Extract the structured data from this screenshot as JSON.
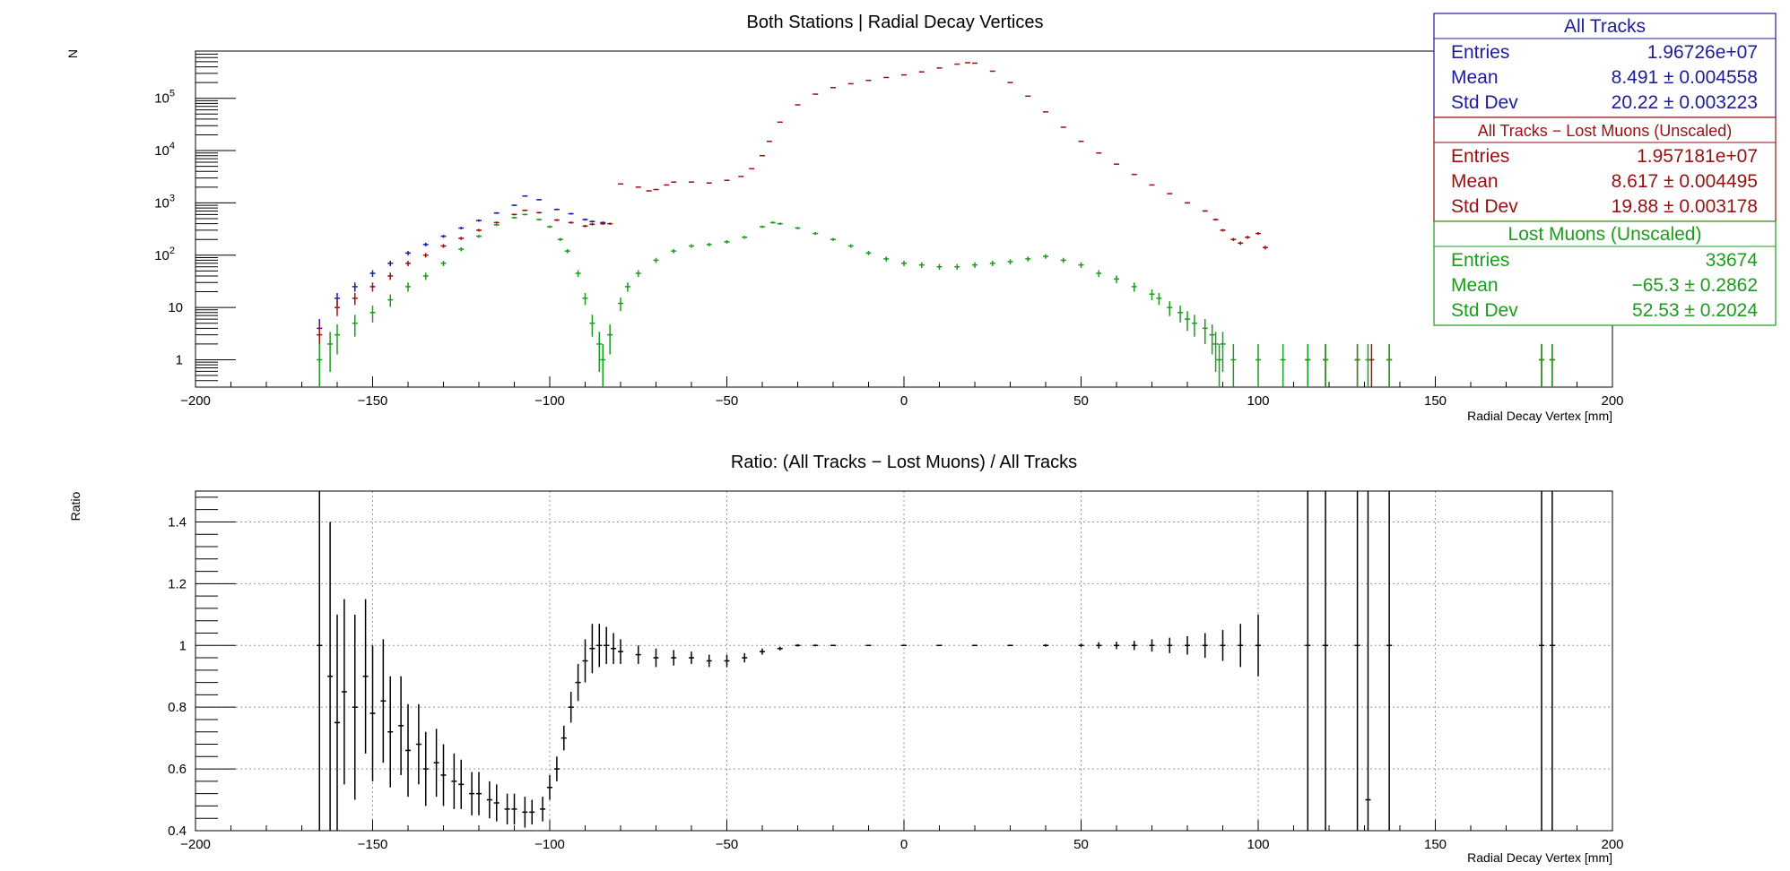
{
  "colors": {
    "all_tracks": "#1c1c9c",
    "all_minus_lost": "#9a1010",
    "lost_muons": "#1c9c1c",
    "ratio": "#000000",
    "grid": "#999999"
  },
  "chart_data": [
    {
      "id": "top",
      "type": "scatter",
      "title": "Both Stations | Radial Decay Vertices",
      "xlabel": "Radial Decay Vertex [mm]",
      "ylabel": "N",
      "xlim": [
        -200,
        200
      ],
      "ylim": [
        0.3,
        800000
      ],
      "yscale": "log",
      "grid": false,
      "xticks": [
        -200,
        -150,
        -100,
        -50,
        0,
        50,
        100,
        150,
        200
      ],
      "xticklabels": [
        "−200",
        "−150",
        "−100",
        "−50",
        "0",
        "50",
        "100",
        "150",
        "200"
      ],
      "yticks": [
        {
          "value": 1,
          "label": "1"
        },
        {
          "value": 10,
          "label": "10"
        },
        {
          "value": 100,
          "label": "10",
          "sup": "2"
        },
        {
          "value": 1000,
          "label": "10",
          "sup": "3"
        },
        {
          "value": 10000,
          "label": "10",
          "sup": "4"
        },
        {
          "value": 100000,
          "label": "10",
          "sup": "5"
        }
      ],
      "series": [
        {
          "name": "All Tracks",
          "color_key": "all_tracks",
          "x": [
            -165,
            -160,
            -155,
            -150,
            -145,
            -140,
            -135,
            -130,
            -125,
            -120,
            -115,
            -110,
            -107,
            -103,
            -98,
            -94,
            -90,
            -88,
            -85
          ],
          "y": [
            4,
            15,
            25,
            45,
            70,
            110,
            160,
            230,
            330,
            460,
            640,
            900,
            1350,
            1150,
            750,
            620,
            480,
            440,
            420
          ]
        },
        {
          "name": "All Tracks − Lost Muons (Unscaled)",
          "color_key": "all_minus_lost",
          "x": [
            -165,
            -160,
            -155,
            -150,
            -145,
            -140,
            -135,
            -130,
            -125,
            -120,
            -115,
            -110,
            -107,
            -103,
            -98,
            -94,
            -90,
            -88,
            -85,
            -83,
            -80,
            -75,
            -72,
            -70,
            -67,
            -65,
            -60,
            -55,
            -50,
            -46,
            -43,
            -40,
            -38,
            -35,
            -30,
            -25,
            -20,
            -15,
            -10,
            -5,
            0,
            5,
            10,
            15,
            18,
            20,
            25,
            30,
            35,
            40,
            45,
            50,
            55,
            60,
            65,
            70,
            75,
            80,
            85,
            88,
            90,
            93,
            95,
            97,
            100,
            102,
            114,
            119,
            128,
            132,
            137,
            180,
            183
          ],
          "y": [
            3,
            10,
            15,
            25,
            40,
            70,
            100,
            150,
            210,
            300,
            420,
            600,
            720,
            650,
            470,
            420,
            360,
            390,
            400,
            400,
            2300,
            2000,
            1700,
            1800,
            2200,
            2500,
            2500,
            2400,
            2700,
            3200,
            4500,
            8000,
            15000,
            35000,
            75000,
            120000,
            160000,
            190000,
            220000,
            250000,
            280000,
            320000,
            380000,
            450000,
            480000,
            470000,
            330000,
            200000,
            110000,
            55000,
            28000,
            15000,
            9000,
            5500,
            3500,
            2200,
            1500,
            1000,
            700,
            480,
            300,
            200,
            170,
            220,
            260,
            140,
            1,
            1,
            1,
            1,
            1,
            1,
            1
          ]
        },
        {
          "name": "Lost Muons (Unscaled)",
          "color_key": "lost_muons",
          "x": [
            -165,
            -162,
            -160,
            -155,
            -150,
            -145,
            -140,
            -135,
            -130,
            -125,
            -120,
            -115,
            -110,
            -107,
            -103,
            -100,
            -97,
            -95,
            -92,
            -90,
            -88,
            -86,
            -85,
            -83,
            -80,
            -78,
            -75,
            -70,
            -65,
            -60,
            -55,
            -50,
            -45,
            -40,
            -37,
            -35,
            -30,
            -25,
            -20,
            -15,
            -10,
            -5,
            0,
            5,
            10,
            15,
            20,
            25,
            30,
            35,
            40,
            45,
            50,
            55,
            60,
            65,
            70,
            72,
            75,
            78,
            80,
            82,
            85,
            87,
            88,
            89,
            90,
            93,
            100,
            107,
            114,
            119,
            128,
            131,
            137,
            180,
            183
          ],
          "y": [
            1,
            2,
            3,
            5,
            8,
            14,
            25,
            40,
            70,
            130,
            230,
            380,
            520,
            600,
            480,
            350,
            200,
            120,
            45,
            15,
            5,
            2,
            1,
            3,
            12,
            25,
            45,
            80,
            120,
            150,
            160,
            180,
            220,
            350,
            420,
            400,
            330,
            260,
            200,
            150,
            110,
            85,
            70,
            65,
            60,
            60,
            65,
            70,
            75,
            85,
            95,
            80,
            65,
            45,
            35,
            25,
            18,
            15,
            10,
            8,
            6,
            5,
            4,
            3,
            2,
            1,
            2,
            1,
            1,
            1,
            1,
            1,
            1,
            1,
            1,
            1,
            1
          ]
        }
      ],
      "stat_boxes": [
        {
          "title": "All Tracks",
          "color_key": "all_tracks",
          "rows": [
            {
              "label": "Entries",
              "value": "1.96726e+07"
            },
            {
              "label": "Mean",
              "value": "8.491 ± 0.004558"
            },
            {
              "label": "Std Dev",
              "value": "20.22 ± 0.003223"
            }
          ]
        },
        {
          "title": "All Tracks − Lost Muons (Unscaled)",
          "color_key": "all_minus_lost",
          "rows": [
            {
              "label": "Entries",
              "value": "1.957181e+07"
            },
            {
              "label": "Mean",
              "value": "8.617 ± 0.004495"
            },
            {
              "label": "Std Dev",
              "value": "19.88 ± 0.003178"
            }
          ]
        },
        {
          "title": "Lost Muons (Unscaled)",
          "color_key": "lost_muons",
          "rows": [
            {
              "label": "Entries",
              "value": "33674"
            },
            {
              "label": "Mean",
              "value": "−65.3 ± 0.2862"
            },
            {
              "label": "Std Dev",
              "value": "52.53 ± 0.2024"
            }
          ]
        }
      ]
    },
    {
      "id": "bottom",
      "type": "scatter",
      "title": "Ratio: (All Tracks  − Lost Muons) / All Tracks",
      "xlabel": "Radial Decay Vertex [mm]",
      "ylabel": "Ratio",
      "xlim": [
        -200,
        200
      ],
      "ylim": [
        0.4,
        1.5
      ],
      "yscale": "linear",
      "grid": true,
      "xticks": [
        -200,
        -150,
        -100,
        -50,
        0,
        50,
        100,
        150,
        200
      ],
      "xticklabels": [
        "−200",
        "−150",
        "−100",
        "−50",
        "0",
        "50",
        "100",
        "150",
        "200"
      ],
      "yticks": [
        {
          "value": 0.4,
          "label": "0.4"
        },
        {
          "value": 0.6,
          "label": "0.6"
        },
        {
          "value": 0.8,
          "label": "0.8"
        },
        {
          "value": 1.0,
          "label": "1"
        },
        {
          "value": 1.2,
          "label": "1.2"
        },
        {
          "value": 1.4,
          "label": "1.4"
        }
      ],
      "series": [
        {
          "name": "",
          "color_key": "ratio",
          "x": [
            -165,
            -162,
            -160,
            -158,
            -155,
            -152,
            -150,
            -147,
            -145,
            -142,
            -140,
            -137,
            -135,
            -132,
            -130,
            -127,
            -125,
            -122,
            -120,
            -117,
            -115,
            -112,
            -110,
            -107,
            -105,
            -102,
            -100,
            -98,
            -96,
            -94,
            -92,
            -90,
            -88,
            -86,
            -84,
            -82,
            -80,
            -75,
            -70,
            -65,
            -60,
            -55,
            -50,
            -45,
            -40,
            -35,
            -30,
            -25,
            -20,
            -10,
            0,
            10,
            20,
            30,
            40,
            50,
            55,
            60,
            65,
            70,
            75,
            80,
            85,
            90,
            95,
            100,
            114,
            119,
            128,
            131,
            137,
            180,
            183
          ],
          "y": [
            1.0,
            0.9,
            0.75,
            0.85,
            0.8,
            0.9,
            0.78,
            0.82,
            0.72,
            0.74,
            0.66,
            0.68,
            0.6,
            0.62,
            0.58,
            0.56,
            0.55,
            0.52,
            0.52,
            0.5,
            0.49,
            0.47,
            0.47,
            0.46,
            0.46,
            0.47,
            0.54,
            0.6,
            0.7,
            0.8,
            0.88,
            0.95,
            0.99,
            1.0,
            1.0,
            0.99,
            0.98,
            0.97,
            0.96,
            0.96,
            0.96,
            0.95,
            0.95,
            0.96,
            0.98,
            0.99,
            1.0,
            1.0,
            1.0,
            1.0,
            1.0,
            1.0,
            1.0,
            1.0,
            1.0,
            1.0,
            1.0,
            1.0,
            1.0,
            1.0,
            1.0,
            1.0,
            1.0,
            1.0,
            1.0,
            1.0,
            1.0,
            1.0,
            1.0,
            0.5,
            1.0,
            1.0,
            1.0
          ],
          "err": [
            0.9,
            0.5,
            0.35,
            0.3,
            0.3,
            0.25,
            0.22,
            0.2,
            0.18,
            0.16,
            0.15,
            0.13,
            0.12,
            0.11,
            0.1,
            0.09,
            0.08,
            0.07,
            0.07,
            0.06,
            0.06,
            0.05,
            0.05,
            0.05,
            0.04,
            0.04,
            0.04,
            0.04,
            0.04,
            0.05,
            0.06,
            0.07,
            0.08,
            0.07,
            0.06,
            0.05,
            0.04,
            0.03,
            0.03,
            0.025,
            0.02,
            0.02,
            0.02,
            0.015,
            0.01,
            0.006,
            0.004,
            0.003,
            0.002,
            0.001,
            0.001,
            0.001,
            0.001,
            0.002,
            0.004,
            0.006,
            0.01,
            0.012,
            0.015,
            0.02,
            0.025,
            0.03,
            0.04,
            0.05,
            0.07,
            0.1,
            1.0,
            1.0,
            1.0,
            1.0,
            1.0,
            1.0,
            1.0
          ]
        }
      ]
    }
  ]
}
